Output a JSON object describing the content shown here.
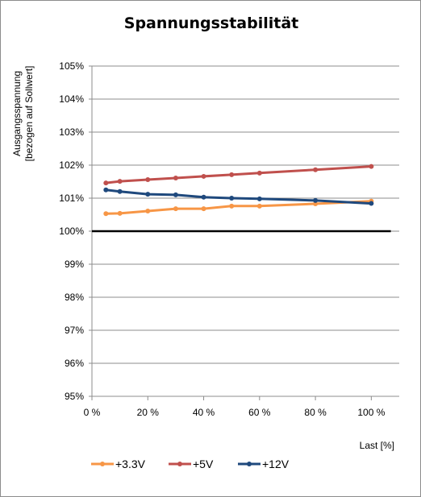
{
  "chart_data": {
    "type": "line",
    "title": "Spannungsstabilität",
    "ylabel_line1": "Ausgangsspannung",
    "ylabel_line2": "[bezogen auf Sollwert]",
    "xlabel": "Last [%]",
    "xlim": [
      0,
      110
    ],
    "ylim": [
      95,
      105
    ],
    "x_ticks": [
      0,
      20,
      40,
      60,
      80,
      100
    ],
    "x_tick_labels": [
      "0 %",
      "20 %",
      "40 %",
      "60 %",
      "80 %",
      "100 %"
    ],
    "y_ticks": [
      95,
      96,
      97,
      98,
      99,
      100,
      101,
      102,
      103,
      104,
      105
    ],
    "y_tick_labels": [
      "95%",
      "96%",
      "97%",
      "98%",
      "99%",
      "100%",
      "101%",
      "102%",
      "103%",
      "104%",
      "105%"
    ],
    "grid": true,
    "legend_position": "bottom",
    "reference_line": {
      "value": 100,
      "color": "#000000",
      "x_start": 0,
      "x_end": 107
    },
    "series": [
      {
        "name": "+3.3V",
        "color": "#f79646",
        "x": [
          5,
          10,
          20,
          30,
          40,
          50,
          60,
          80,
          100
        ],
        "y": [
          100.53,
          100.54,
          100.61,
          100.68,
          100.68,
          100.76,
          100.76,
          100.83,
          100.91
        ]
      },
      {
        "name": "+5V",
        "color": "#c0504d",
        "x": [
          5,
          10,
          20,
          30,
          40,
          50,
          60,
          80,
          100
        ],
        "y": [
          101.46,
          101.51,
          101.56,
          101.61,
          101.66,
          101.71,
          101.76,
          101.86,
          101.96
        ]
      },
      {
        "name": "+12V",
        "color": "#1f497d",
        "x": [
          5,
          10,
          20,
          30,
          40,
          50,
          60,
          80,
          100
        ],
        "y": [
          101.25,
          101.2,
          101.12,
          101.1,
          101.03,
          101.0,
          100.98,
          100.93,
          100.84
        ]
      }
    ]
  }
}
